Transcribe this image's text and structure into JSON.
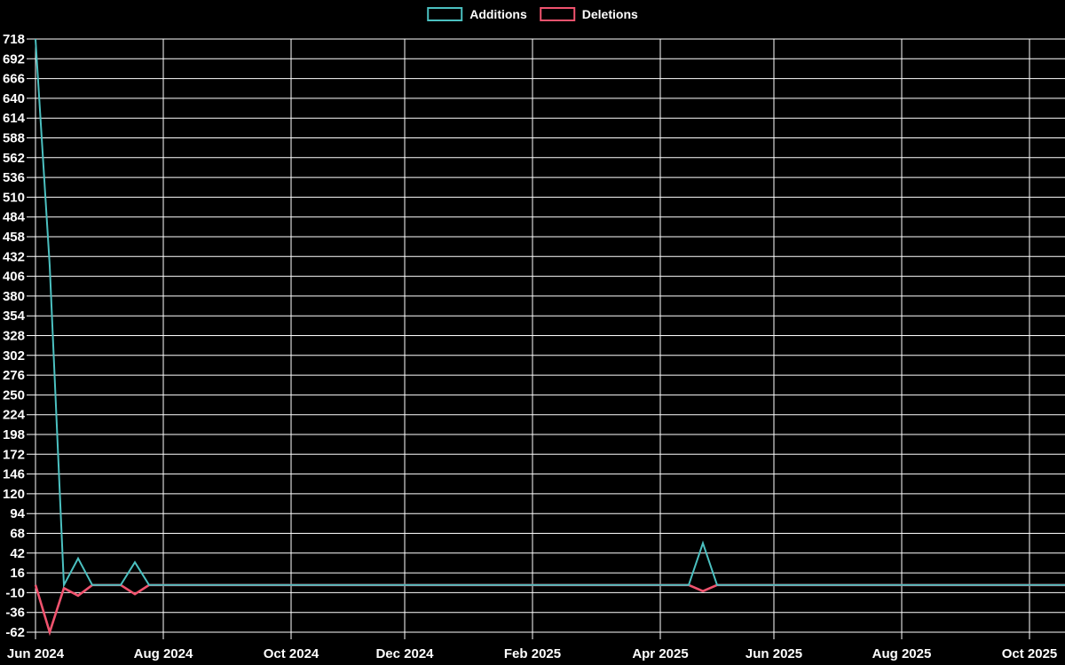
{
  "colors": {
    "background": "#000000",
    "grid": "#ffffff",
    "text": "#ffffff",
    "additions": "#4bc0c0",
    "deletions": "#f0536e"
  },
  "legend": {
    "items": [
      {
        "label": "Additions",
        "color": "#4bc0c0"
      },
      {
        "label": "Deletions",
        "color": "#f0536e"
      }
    ]
  },
  "chart_data": {
    "type": "line",
    "title": "",
    "xlabel": "",
    "ylabel": "",
    "x_axis": {
      "unit": "week",
      "start_date": "2024-06-02",
      "weeks_total": 73,
      "tick_labels": [
        "Jun 2024",
        "Aug 2024",
        "Oct 2024",
        "Dec 2024",
        "Feb 2025",
        "Apr 2025",
        "Jun 2025",
        "Aug 2025",
        "Oct 2025"
      ],
      "tick_week_indices": [
        0,
        9,
        18,
        26,
        35,
        44,
        52,
        61,
        70
      ]
    },
    "y_axis": {
      "min": -62,
      "max": 718,
      "tick_step": 26,
      "tick_labels": [
        718,
        692,
        666,
        640,
        614,
        588,
        562,
        536,
        510,
        484,
        458,
        432,
        406,
        380,
        354,
        328,
        302,
        276,
        250,
        224,
        198,
        172,
        146,
        120,
        94,
        68,
        42,
        16,
        -10,
        -36,
        -62
      ]
    },
    "grid": {
      "show": true,
      "color": "#ffffff"
    },
    "legend_position": "top-center",
    "series": [
      {
        "name": "Additions",
        "color": "#4bc0c0",
        "values": [
          718,
          420,
          0,
          35,
          0,
          0,
          0,
          30,
          0,
          0,
          0,
          0,
          0,
          0,
          0,
          0,
          0,
          0,
          0,
          0,
          0,
          0,
          0,
          0,
          0,
          0,
          0,
          0,
          0,
          0,
          0,
          0,
          0,
          0,
          0,
          0,
          0,
          0,
          0,
          0,
          0,
          0,
          0,
          0,
          0,
          0,
          0,
          55,
          0,
          0,
          0,
          0,
          0,
          0,
          0,
          0,
          0,
          0,
          0,
          0,
          0,
          0,
          0,
          0,
          0,
          0,
          0,
          0,
          0,
          0,
          0,
          0,
          0
        ]
      },
      {
        "name": "Deletions",
        "color": "#f0536e",
        "values": [
          0,
          -62,
          -4,
          -14,
          0,
          0,
          0,
          -12,
          0,
          0,
          0,
          0,
          0,
          0,
          0,
          0,
          0,
          0,
          0,
          0,
          0,
          0,
          0,
          0,
          0,
          0,
          0,
          0,
          0,
          0,
          0,
          0,
          0,
          0,
          0,
          0,
          0,
          0,
          0,
          0,
          0,
          0,
          0,
          0,
          0,
          0,
          0,
          -8,
          0,
          0,
          0,
          0,
          0,
          0,
          0,
          0,
          0,
          0,
          0,
          0,
          0,
          0,
          0,
          0,
          0,
          0,
          0,
          0,
          0,
          0,
          0,
          0,
          0
        ]
      }
    ]
  }
}
